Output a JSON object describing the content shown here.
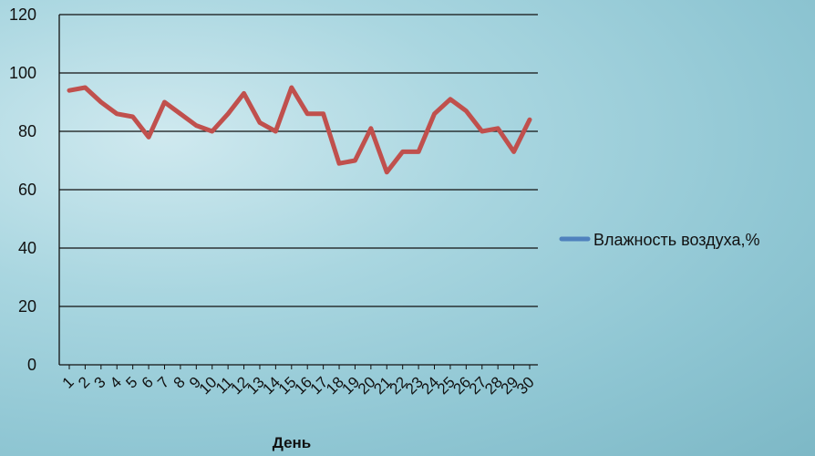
{
  "chart_data": {
    "type": "line",
    "title": "",
    "xlabel": "День",
    "ylabel": "",
    "ylim": [
      0,
      120
    ],
    "y_ticks": [
      0,
      20,
      40,
      60,
      80,
      100,
      120
    ],
    "categories": [
      "1",
      "2",
      "3",
      "4",
      "5",
      "6",
      "7",
      "8",
      "9",
      "10",
      "11",
      "12",
      "13",
      "14",
      "15",
      "16",
      "17",
      "18",
      "19",
      "20",
      "21",
      "22",
      "23",
      "24",
      "25",
      "26",
      "27",
      "28",
      "29",
      "30"
    ],
    "series": [
      {
        "name": "Влажность воздуха,%",
        "color": "#c0504d",
        "legend_color": "#4f81bd",
        "values": [
          94,
          95,
          90,
          86,
          85,
          78,
          90,
          86,
          82,
          80,
          86,
          93,
          83,
          80,
          95,
          86,
          86,
          69,
          70,
          81,
          66,
          73,
          73,
          86,
          91,
          87,
          80,
          81,
          73,
          84
        ]
      }
    ],
    "grid": true,
    "legend_position": "right"
  }
}
